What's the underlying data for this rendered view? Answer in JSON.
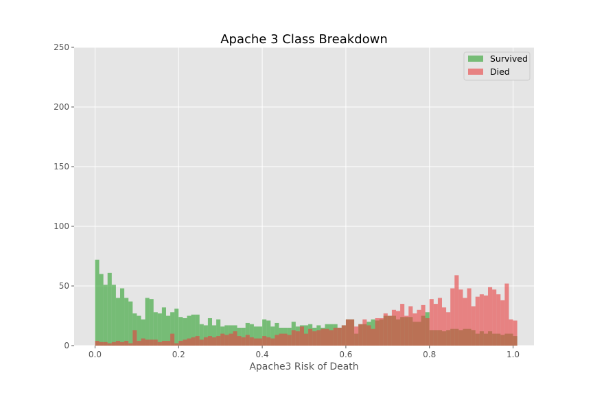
{
  "chart_data": {
    "type": "bar",
    "title": "Apache 3 Class Breakdown",
    "xlabel": "Apache3 Risk of Death",
    "ylabel": "",
    "xlim": [
      -0.05,
      1.05
    ],
    "ylim": [
      0,
      250
    ],
    "bin_width": 0.01,
    "x_ticks": [
      "0.0",
      "0.2",
      "0.4",
      "0.6",
      "0.8",
      "1.0"
    ],
    "y_ticks": [
      "0",
      "50",
      "100",
      "150",
      "200",
      "250"
    ],
    "grid": true,
    "legend_position": "top-right",
    "series": [
      {
        "name": "Survived",
        "color": "#2ca02c",
        "values": [
          72,
          60,
          51,
          61,
          51,
          40,
          48,
          40,
          37,
          27,
          25,
          22,
          40,
          39,
          28,
          27,
          32,
          25,
          28,
          31,
          24,
          23,
          25,
          26,
          26,
          18,
          17,
          23,
          17,
          22,
          16,
          17,
          17,
          17,
          15,
          15,
          19,
          18,
          16,
          16,
          22,
          21,
          16,
          19,
          15,
          15,
          15,
          20,
          16,
          17,
          17,
          18,
          15,
          17,
          15,
          18,
          18,
          18,
          15,
          17,
          22,
          22,
          10,
          18,
          18,
          20,
          22,
          21,
          22,
          25,
          25,
          25,
          22,
          24,
          24,
          24,
          20,
          20,
          25,
          28,
          13,
          13,
          13,
          12,
          13,
          14,
          14,
          13,
          14,
          14,
          13,
          10,
          12,
          10,
          12,
          10,
          10,
          9,
          10,
          10,
          8
        ]
      },
      {
        "name": "Died",
        "color": "#e84040",
        "values": [
          4,
          3,
          3,
          2,
          3,
          4,
          3,
          4,
          2,
          13,
          4,
          6,
          5,
          5,
          5,
          3,
          4,
          4,
          10,
          2,
          4,
          5,
          6,
          7,
          8,
          5,
          7,
          8,
          7,
          8,
          10,
          9,
          10,
          12,
          8,
          7,
          9,
          7,
          6,
          6,
          8,
          7,
          6,
          9,
          10,
          10,
          9,
          13,
          12,
          16,
          10,
          14,
          12,
          13,
          14,
          14,
          13,
          15,
          15,
          17,
          22,
          22,
          16,
          18,
          22,
          17,
          14,
          23,
          23,
          27,
          25,
          30,
          29,
          35,
          25,
          33,
          27,
          30,
          34,
          23,
          39,
          35,
          40,
          32,
          28,
          48,
          59,
          47,
          40,
          48,
          33,
          41,
          43,
          42,
          49,
          47,
          43,
          38,
          52,
          22,
          21
        ]
      }
    ]
  }
}
